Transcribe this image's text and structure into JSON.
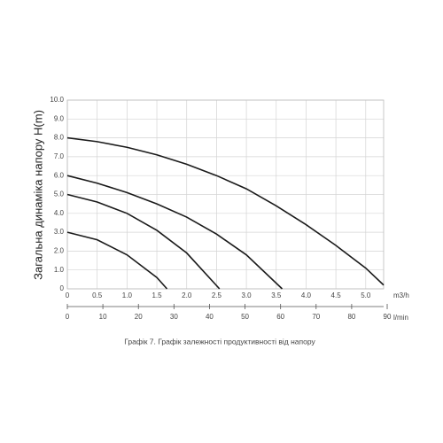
{
  "chart_data": {
    "type": "line",
    "y_label": "Загальна динаміка напору H(m)",
    "x_unit": "m3/h",
    "x2_unit": "l/min",
    "caption": "Графік 7. Графік залежності продуктивності від напору",
    "xlim": [
      0,
      5.3
    ],
    "ylim": [
      0,
      10
    ],
    "xticks": [
      0,
      {
        "value": 0.5,
        "label": "0.5"
      },
      {
        "value": 1,
        "label": "1.0"
      },
      {
        "value": 1.5,
        "label": "1.5"
      },
      {
        "value": 2,
        "label": "2.0"
      },
      {
        "value": 2.5,
        "label": "2.5"
      },
      {
        "value": 3,
        "label": "3.0"
      },
      {
        "value": 3.5,
        "label": "3.5"
      },
      {
        "value": 4,
        "label": "4.0"
      },
      {
        "value": 4.5,
        "label": "4.5"
      },
      {
        "value": 5,
        "label": "5.0"
      }
    ],
    "yticks": [
      0,
      {
        "value": 1,
        "label": "1.0"
      },
      {
        "value": 2,
        "label": "2.0"
      },
      {
        "value": 3,
        "label": "3.0"
      },
      {
        "value": 4,
        "label": "4.0"
      },
      {
        "value": 5,
        "label": "5.0"
      },
      {
        "value": 6,
        "label": "6.0"
      },
      {
        "value": 7,
        "label": "7.0"
      },
      {
        "value": 8,
        "label": "8.0"
      },
      {
        "value": 9,
        "label": "9.0"
      },
      {
        "value": 10,
        "label": "10.0"
      }
    ],
    "x2lim": [
      0,
      89
    ],
    "x2ticks": [
      0,
      10,
      20,
      30,
      40,
      50,
      60,
      70,
      80,
      90
    ],
    "grid": true,
    "series": [
      {
        "color": "#1a1a1a",
        "x": [
          0,
          0.5,
          1,
          1.5,
          1.67
        ],
        "values": [
          3.0,
          2.6,
          1.8,
          0.6,
          0
        ]
      },
      {
        "color": "#1a1a1a",
        "x": [
          0,
          0.5,
          1,
          1.5,
          2,
          2.55
        ],
        "values": [
          5.0,
          4.6,
          4.0,
          3.1,
          1.9,
          0
        ]
      },
      {
        "color": "#1a1a1a",
        "x": [
          0,
          0.5,
          1,
          1.5,
          2,
          2.5,
          3,
          3.6
        ],
        "values": [
          6.0,
          5.6,
          5.1,
          4.5,
          3.8,
          2.9,
          1.8,
          0
        ]
      },
      {
        "color": "#1a1a1a",
        "x": [
          0,
          0.5,
          1,
          1.5,
          2,
          2.5,
          3,
          3.5,
          4,
          4.5,
          5,
          5.3
        ],
        "values": [
          8.0,
          7.8,
          7.5,
          7.1,
          6.6,
          6.0,
          5.3,
          4.4,
          3.4,
          2.3,
          1.1,
          0.2
        ]
      }
    ]
  }
}
